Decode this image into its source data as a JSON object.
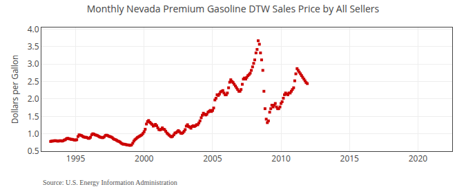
{
  "chart_data": {
    "type": "scatter",
    "title": "Monthly Nevada Premium Gasoline DTW Sales Price by All Sellers",
    "y_label": "Dollars per Gallon",
    "annotations": [
      "Source: U.S. Energy Information Administration"
    ],
    "color": "#CC0000",
    "marker": "square",
    "grid": true,
    "xlim": [
      1992.5,
      2022.5
    ],
    "ylim": [
      0.5,
      4.05
    ],
    "xticks": [
      1995,
      2000,
      2005,
      2010,
      2015,
      2020
    ],
    "yticks": [
      0.5,
      {
        "value": 1.0,
        "label": "1.0"
      },
      1.5,
      {
        "value": 2.0,
        "label": "2.0"
      },
      2.5,
      {
        "value": 3.0,
        "label": "3.0"
      },
      3.5,
      {
        "value": 4.0,
        "label": "4.0"
      }
    ],
    "x": [
      1993.17,
      1993.25,
      1993.33,
      1993.42,
      1993.5,
      1993.58,
      1993.67,
      1993.75,
      1993.83,
      1993.92,
      1994.0,
      1994.08,
      1994.17,
      1994.25,
      1994.33,
      1994.42,
      1994.5,
      1994.58,
      1994.67,
      1994.75,
      1994.83,
      1994.92,
      1995.0,
      1995.08,
      1995.17,
      1995.25,
      1995.33,
      1995.42,
      1995.5,
      1995.58,
      1995.67,
      1995.75,
      1995.83,
      1995.92,
      1996.0,
      1996.08,
      1996.17,
      1996.25,
      1996.33,
      1996.42,
      1996.5,
      1996.58,
      1996.67,
      1996.75,
      1996.83,
      1996.92,
      1997.0,
      1997.08,
      1997.17,
      1997.25,
      1997.33,
      1997.42,
      1997.5,
      1997.58,
      1997.67,
      1997.75,
      1997.83,
      1997.92,
      1998.0,
      1998.08,
      1998.17,
      1998.25,
      1998.33,
      1998.42,
      1998.5,
      1998.58,
      1998.67,
      1998.75,
      1998.83,
      1998.92,
      1999.0,
      1999.08,
      1999.17,
      1999.25,
      1999.33,
      1999.42,
      1999.5,
      1999.58,
      1999.67,
      1999.75,
      1999.83,
      1999.92,
      2000.0,
      2000.08,
      2000.17,
      2000.25,
      2000.33,
      2000.42,
      2000.5,
      2000.58,
      2000.67,
      2000.75,
      2000.83,
      2000.92,
      2001.0,
      2001.08,
      2001.17,
      2001.25,
      2001.33,
      2001.42,
      2001.5,
      2001.58,
      2001.67,
      2001.75,
      2001.83,
      2001.92,
      2002.0,
      2002.08,
      2002.17,
      2002.25,
      2002.33,
      2002.42,
      2002.5,
      2002.58,
      2002.67,
      2002.75,
      2002.83,
      2002.92,
      2003.0,
      2003.08,
      2003.17,
      2003.25,
      2003.33,
      2003.42,
      2003.5,
      2003.58,
      2003.67,
      2003.75,
      2003.83,
      2003.92,
      2004.0,
      2004.08,
      2004.17,
      2004.25,
      2004.33,
      2004.42,
      2004.5,
      2004.58,
      2004.67,
      2004.75,
      2004.83,
      2004.92,
      2005.0,
      2005.08,
      2005.17,
      2005.25,
      2005.33,
      2005.42,
      2005.5,
      2005.58,
      2005.67,
      2005.75,
      2005.83,
      2005.92,
      2006.0,
      2006.08,
      2006.17,
      2006.25,
      2006.33,
      2006.42,
      2006.5,
      2006.58,
      2006.67,
      2006.75,
      2006.83,
      2006.92,
      2007.0,
      2007.08,
      2007.17,
      2007.25,
      2007.33,
      2007.42,
      2007.5,
      2007.58,
      2007.67,
      2007.75,
      2007.83,
      2007.92,
      2008.0,
      2008.08,
      2008.17,
      2008.25,
      2008.33,
      2008.42,
      2008.5,
      2008.58,
      2008.67,
      2008.75,
      2008.83,
      2008.92,
      2009.0,
      2009.08,
      2009.17,
      2009.25,
      2009.33,
      2009.42,
      2009.5,
      2009.58,
      2009.67,
      2009.75,
      2009.83,
      2009.92,
      2010.0,
      2010.08,
      2010.17,
      2010.25,
      2010.33,
      2010.42,
      2010.5,
      2010.58,
      2010.67,
      2010.75,
      2010.83,
      2010.92,
      2011.0,
      2011.08,
      2011.17,
      2011.25,
      2011.33,
      2011.42,
      2011.5,
      2011.58,
      2011.67,
      2011.75,
      2011.83,
      2011.92
    ],
    "values": [
      0.78,
      0.79,
      0.79,
      0.8,
      0.8,
      0.8,
      0.79,
      0.79,
      0.8,
      0.8,
      0.79,
      0.8,
      0.82,
      0.83,
      0.86,
      0.87,
      0.86,
      0.85,
      0.84,
      0.84,
      0.83,
      0.82,
      0.82,
      0.83,
      0.92,
      0.97,
      0.96,
      0.95,
      0.93,
      0.91,
      0.9,
      0.9,
      0.89,
      0.87,
      0.87,
      0.9,
      0.97,
      1.0,
      0.99,
      0.97,
      0.96,
      0.95,
      0.93,
      0.91,
      0.9,
      0.89,
      0.89,
      0.91,
      0.95,
      0.96,
      0.95,
      0.93,
      0.92,
      0.91,
      0.89,
      0.86,
      0.84,
      0.83,
      0.81,
      0.79,
      0.78,
      0.76,
      0.73,
      0.71,
      0.7,
      0.7,
      0.69,
      0.68,
      0.68,
      0.67,
      0.67,
      0.68,
      0.73,
      0.79,
      0.83,
      0.86,
      0.89,
      0.91,
      0.93,
      0.95,
      0.97,
      1.01,
      1.06,
      1.13,
      1.28,
      1.35,
      1.38,
      1.33,
      1.3,
      1.27,
      1.22,
      1.24,
      1.27,
      1.23,
      1.17,
      1.12,
      1.11,
      1.13,
      1.17,
      1.13,
      1.12,
      1.07,
      1.02,
      0.99,
      0.96,
      0.93,
      0.91,
      0.93,
      0.97,
      1.02,
      1.03,
      1.06,
      1.09,
      1.06,
      1.02,
      1.01,
      1.03,
      1.07,
      1.12,
      1.22,
      1.26,
      1.21,
      1.19,
      1.16,
      1.21,
      1.23,
      1.21,
      1.23,
      1.26,
      1.26,
      1.31,
      1.37,
      1.46,
      1.53,
      1.59,
      1.56,
      1.54,
      1.56,
      1.62,
      1.64,
      1.67,
      1.64,
      1.67,
      1.74,
      1.97,
      2.02,
      2.12,
      2.1,
      2.14,
      2.2,
      2.22,
      2.24,
      2.17,
      2.12,
      2.12,
      2.17,
      2.32,
      2.48,
      2.55,
      2.5,
      2.47,
      2.42,
      2.37,
      2.32,
      2.27,
      2.22,
      2.22,
      2.27,
      2.42,
      2.57,
      2.6,
      2.57,
      2.62,
      2.67,
      2.7,
      2.74,
      2.82,
      2.92,
      3.02,
      3.12,
      3.32,
      3.42,
      3.67,
      3.57,
      3.32,
      3.12,
      2.82,
      2.22,
      1.72,
      1.42,
      1.32,
      1.37,
      1.62,
      1.72,
      1.82,
      1.77,
      1.82,
      1.87,
      1.77,
      1.72,
      1.72,
      1.77,
      1.87,
      1.92,
      2.02,
      2.12,
      2.17,
      2.14,
      2.12,
      2.17,
      2.17,
      2.22,
      2.27,
      2.32,
      2.52,
      2.72,
      2.87,
      2.82,
      2.77,
      2.72,
      2.67,
      2.62,
      2.57,
      2.52,
      2.47,
      2.44
    ]
  }
}
